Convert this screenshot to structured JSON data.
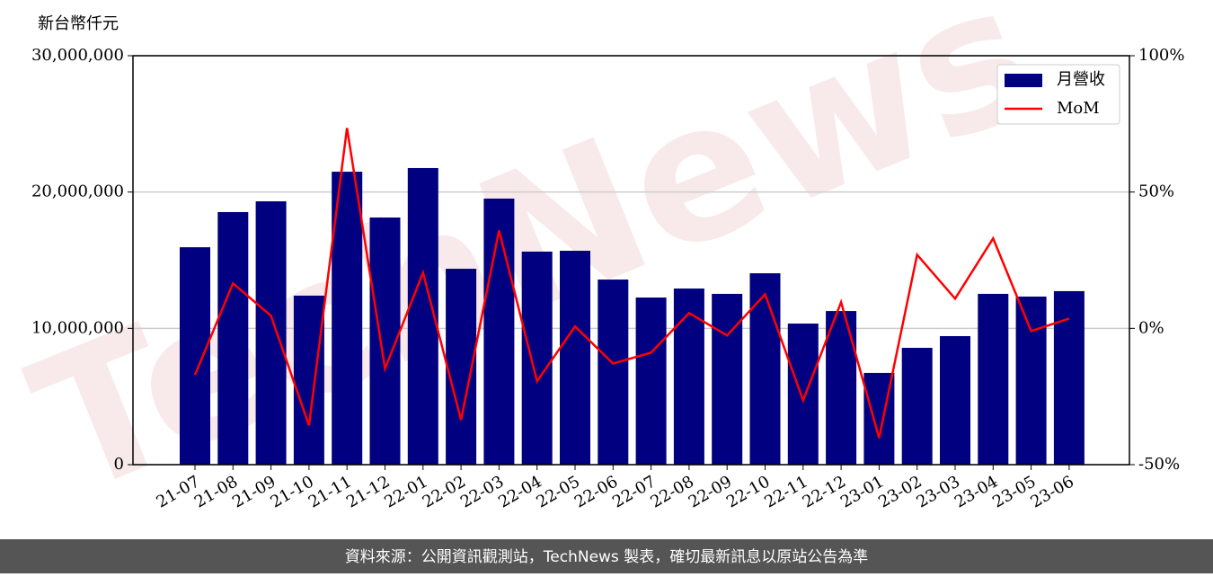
{
  "chart_data": {
    "type": "bar_line",
    "y_axis_label": "新台幣仟元",
    "watermark": "TechNews",
    "categories": [
      "21-07",
      "21-08",
      "21-09",
      "21-10",
      "21-11",
      "21-12",
      "22-01",
      "22-02",
      "22-03",
      "22-04",
      "22-05",
      "22-06",
      "22-07",
      "22-08",
      "22-09",
      "22-10",
      "22-11",
      "22-12",
      "23-01",
      "23-02",
      "23-03",
      "23-04",
      "23-05",
      "23-06"
    ],
    "series": [
      {
        "name": "月營收",
        "type": "bar",
        "color": "#000080",
        "values": [
          15950000,
          18530000,
          19320000,
          12400000,
          21490000,
          18130000,
          21760000,
          14370000,
          19520000,
          15630000,
          15690000,
          13580000,
          12260000,
          12920000,
          12530000,
          14040000,
          10350000,
          11270000,
          6730000,
          8570000,
          9430000,
          12530000,
          12330000,
          12730000
        ]
      },
      {
        "name": "MoM",
        "type": "line",
        "axis": "y2",
        "color": "#ff0000",
        "values": [
          -17.1,
          16.5,
          4.6,
          -35.6,
          73.5,
          -14.8,
          20.4,
          -33.6,
          35.9,
          -19.4,
          0.7,
          -12.9,
          -8.9,
          5.6,
          -2.6,
          12.5,
          -26.4,
          9.6,
          -40.2,
          27.0,
          10.9,
          33.0,
          -1.0,
          3.6
        ]
      }
    ],
    "ylim": [
      0,
      30000000
    ],
    "yticks": [
      0,
      {
        "value": 10000000,
        "label": "10,000,000"
      },
      {
        "value": 20000000,
        "label": "20,000,000"
      },
      {
        "value": 30000000,
        "label": "30,000,000"
      }
    ],
    "y2lim": [
      -50,
      100
    ],
    "y2ticks": [
      {
        "value": -50,
        "label": "-50%"
      },
      {
        "value": 0,
        "label": "0%"
      },
      {
        "value": 50,
        "label": "50%"
      },
      {
        "value": 100,
        "label": "100%"
      }
    ],
    "grid": true,
    "legend": "upper right",
    "footer": "資料來源：公開資訊觀測站，TechNews 製表，確切最新訊息以原站公告為準"
  }
}
